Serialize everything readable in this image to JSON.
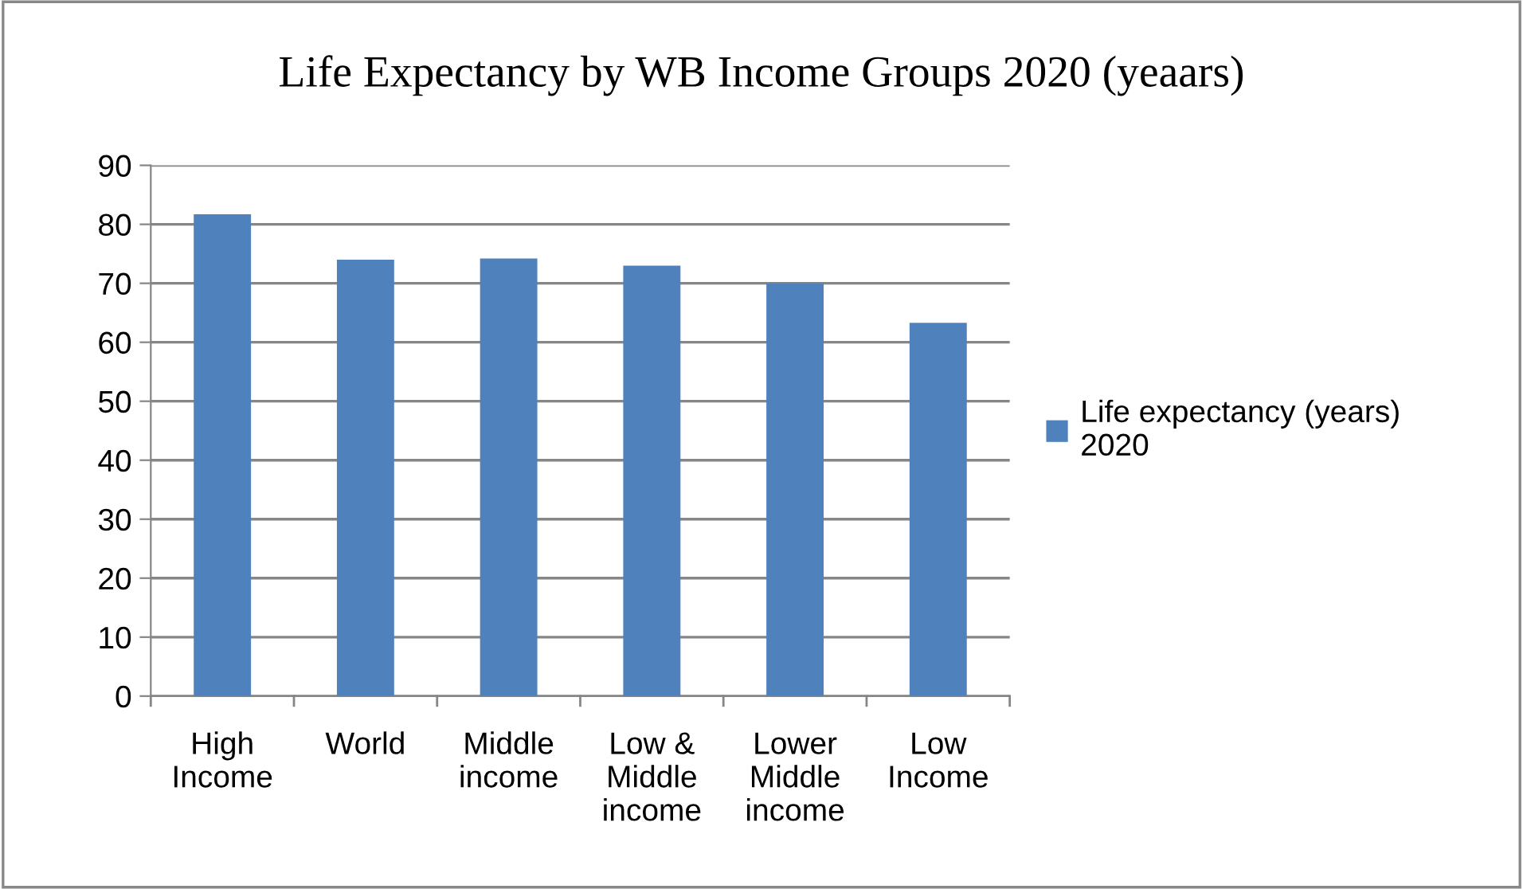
{
  "chart_data": {
    "type": "bar",
    "title": "Life Expectancy by WB Income Groups 2020 (yeaars)",
    "categories": [
      "High\nIncome",
      "World",
      "Middle\nincome",
      "Low &\nMiddle\nincome",
      "Lower\nMiddle\nincome",
      "Low\nIncome"
    ],
    "series": [
      {
        "name": "Life expectancy (years)\n2020",
        "color": "#4f81bd",
        "values": [
          81.7,
          74.0,
          74.2,
          73.0,
          70.0,
          63.3
        ]
      }
    ],
    "ylim": [
      0,
      90
    ],
    "yticks": [
      0,
      10,
      20,
      30,
      40,
      50,
      60,
      70,
      80,
      90
    ],
    "grid": "y",
    "legend": "right"
  }
}
